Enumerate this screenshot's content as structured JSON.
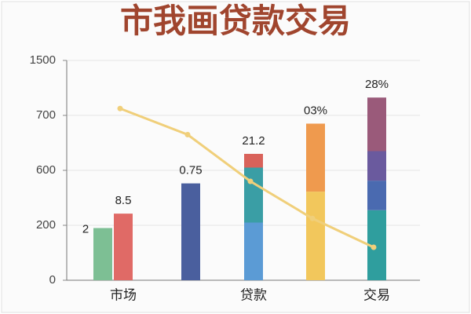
{
  "chart_data": {
    "type": "stacked-bar-line",
    "title": "市我画贷款交易",
    "categories": [
      null,
      "市场",
      null,
      "贷款",
      null,
      "交易"
    ],
    "series": [
      {
        "values": [
          190,
          285,
          505,
          220,
          445,
          310
        ],
        "colors": [
          "#7dbf94",
          "#e06a66",
          "#4a5f9e",
          "#5b9bd5",
          "#f2c75c",
          "#2f9e9e"
        ]
      },
      {
        "values": [
          null,
          null,
          null,
          385,
          240,
          215
        ],
        "colors": [
          null,
          null,
          null,
          "#3a9ea5",
          "#ef9a4e",
          "#4a6ab0"
        ]
      },
      {
        "values": [
          null,
          null,
          null,
          25,
          null,
          110
        ],
        "colors": [
          null,
          null,
          null,
          "#d9625a",
          null,
          "#6a5a9e"
        ]
      },
      {
        "values": [
          null,
          null,
          null,
          null,
          null,
          325
        ],
        "colors": [
          null,
          null,
          null,
          null,
          null,
          "#9a5a7a"
        ]
      }
    ],
    "line": {
      "values": [
        null,
        800,
        665,
        520,
        250,
        120
      ],
      "color": "#f0cf7a"
    },
    "annotations": [
      "2",
      "8.5",
      "0.75",
      "21.2",
      "03%",
      "28%"
    ],
    "ylim": [
      0,
      1500
    ],
    "yticks": [
      0,
      200,
      600,
      700,
      1500
    ],
    "grid": true
  }
}
